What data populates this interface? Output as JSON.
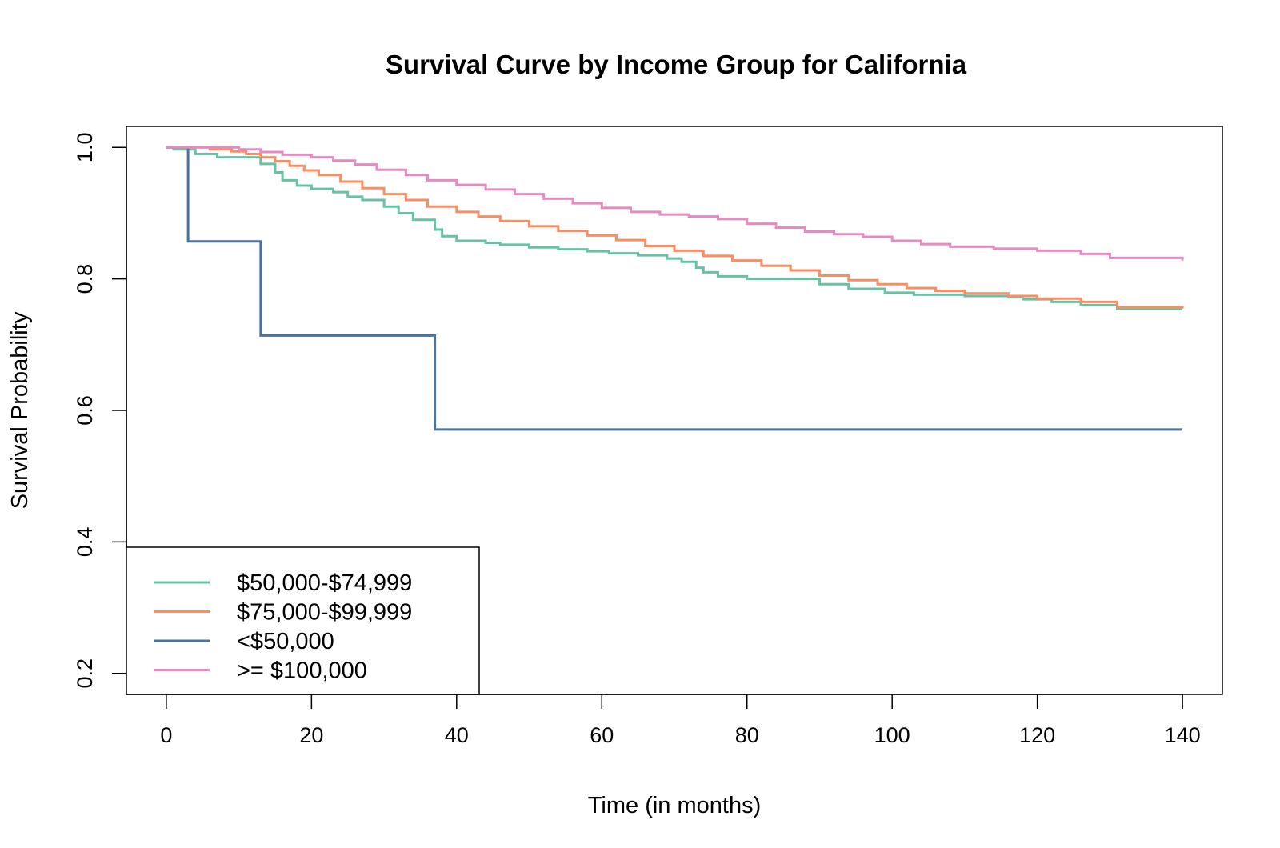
{
  "chart_data": {
    "type": "line",
    "step": true,
    "title": "Survival Curve by Income Group for California",
    "xlabel": "Time (in months)",
    "ylabel": "Survival Probability",
    "xlim": [
      -5.5,
      145.5
    ],
    "ylim": [
      0.168,
      1.032
    ],
    "xticks": [
      0,
      20,
      40,
      60,
      80,
      100,
      120,
      140
    ],
    "yticks": [
      0.2,
      0.4,
      0.6,
      0.8,
      1.0
    ],
    "xtick_labels": [
      "0",
      "20",
      "40",
      "60",
      "80",
      "100",
      "120",
      "140"
    ],
    "ytick_labels": [
      "0.2",
      "0.4",
      "0.6",
      "0.8",
      "1.0"
    ],
    "grid": false,
    "legend_position": "bottom-left",
    "series": [
      {
        "name": "$50,000-$74,999",
        "color": "#66C2A5",
        "x": [
          0,
          1,
          4,
          7,
          13,
          15,
          16,
          18,
          20,
          23,
          25,
          27,
          30,
          32,
          34,
          37,
          38,
          40,
          44,
          46,
          50,
          54,
          58,
          61,
          65,
          69,
          71,
          73,
          74,
          76,
          80,
          85,
          90,
          94,
          99,
          103,
          110,
          116,
          118,
          122,
          126,
          131,
          140
        ],
        "y": [
          1.0,
          0.997,
          0.99,
          0.985,
          0.975,
          0.962,
          0.95,
          0.942,
          0.937,
          0.932,
          0.925,
          0.92,
          0.91,
          0.9,
          0.89,
          0.875,
          0.865,
          0.858,
          0.855,
          0.852,
          0.848,
          0.845,
          0.842,
          0.839,
          0.836,
          0.831,
          0.826,
          0.817,
          0.81,
          0.804,
          0.8,
          0.8,
          0.792,
          0.785,
          0.779,
          0.776,
          0.774,
          0.772,
          0.769,
          0.765,
          0.76,
          0.754,
          0.754
        ]
      },
      {
        "name": "$75,000-$99,999",
        "color": "#FC8D62",
        "x": [
          0,
          3,
          6,
          9,
          11,
          13,
          15,
          17,
          19,
          21,
          24,
          27,
          30,
          33,
          36,
          40,
          43,
          46,
          50,
          54,
          58,
          62,
          66,
          70,
          74,
          78,
          82,
          86,
          90,
          94,
          98,
          102,
          106,
          110,
          116,
          120,
          126,
          131,
          140
        ],
        "y": [
          1.0,
          1.0,
          0.997,
          0.994,
          0.99,
          0.985,
          0.979,
          0.972,
          0.965,
          0.958,
          0.948,
          0.938,
          0.929,
          0.92,
          0.91,
          0.902,
          0.895,
          0.888,
          0.88,
          0.873,
          0.866,
          0.859,
          0.85,
          0.843,
          0.835,
          0.828,
          0.82,
          0.813,
          0.805,
          0.798,
          0.792,
          0.786,
          0.782,
          0.778,
          0.774,
          0.77,
          0.765,
          0.757,
          0.755
        ]
      },
      {
        "name": "<$50,000",
        "color": "#4C72A0",
        "x": [
          0,
          3,
          13,
          37,
          140
        ],
        "y": [
          1.0,
          0.857,
          0.714,
          0.571,
          0.571
        ]
      },
      {
        "name": ">= $100,000",
        "color": "#E78AC3",
        "x": [
          0,
          5,
          10,
          13,
          16,
          20,
          23,
          26,
          29,
          33,
          36,
          40,
          44,
          48,
          52,
          56,
          60,
          64,
          68,
          72,
          76,
          80,
          84,
          88,
          92,
          96,
          100,
          104,
          108,
          114,
          120,
          126,
          130,
          140
        ],
        "y": [
          1.0,
          1.0,
          0.997,
          0.993,
          0.989,
          0.985,
          0.98,
          0.974,
          0.966,
          0.958,
          0.95,
          0.943,
          0.936,
          0.929,
          0.922,
          0.915,
          0.908,
          0.902,
          0.898,
          0.895,
          0.891,
          0.884,
          0.878,
          0.872,
          0.868,
          0.864,
          0.858,
          0.853,
          0.849,
          0.846,
          0.843,
          0.838,
          0.832,
          0.828
        ]
      }
    ]
  }
}
